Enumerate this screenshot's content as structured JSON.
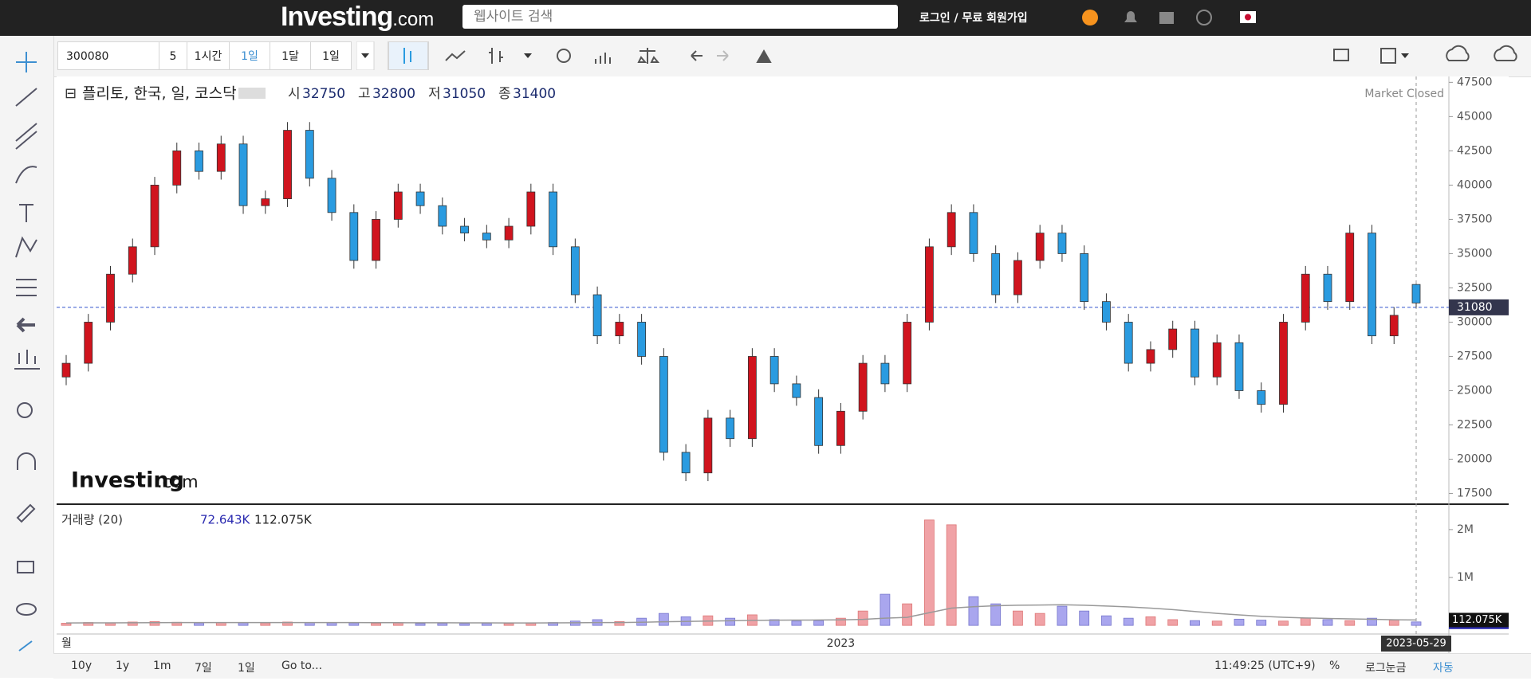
{
  "header": {
    "logo": "Investing",
    "logo_suffix": ".com",
    "search_placeholder": "웹사이트 검색",
    "login": "로그인 / 무료 회원가입"
  },
  "toolbar": {
    "symbol": "300080",
    "intervals": [
      "5",
      "1시간",
      "1일",
      "1달",
      "1일"
    ]
  },
  "chart_data": {
    "type": "candlestick",
    "title": "플리토, 한국, 일, 코스닥",
    "ohlc_labels": [
      "시",
      "고",
      "저",
      "종"
    ],
    "market_status": "Market Closed",
    "watermark": "Investing",
    "watermark_suffix": ".com",
    "up_color": "#d0141e",
    "down_color": "#2a9be0",
    "vol_up_color": "#f0a2a6",
    "vol_down_color": "#a9a6ee",
    "ma_color": "#999999",
    "categories": [
      "월",
      null,
      null,
      null,
      null,
      null,
      null,
      null,
      null,
      null,
      null,
      null,
      null,
      null,
      null,
      null,
      null,
      null,
      null,
      null,
      null,
      null,
      null,
      null,
      null,
      null,
      null,
      null,
      null,
      null,
      null,
      null,
      null,
      null,
      null,
      "2023",
      null,
      null,
      null,
      null,
      null,
      null,
      null,
      null,
      null,
      null,
      null,
      null,
      null,
      null,
      null,
      null,
      null,
      null,
      null,
      null,
      null,
      null,
      null,
      null,
      null,
      "2023-05-29"
    ],
    "open": [
      26000,
      27000,
      30000,
      33500,
      35500,
      40000,
      42500,
      41000,
      43000,
      38500,
      39000,
      44000,
      40500,
      38000,
      34500,
      37500,
      39500,
      38500,
      37000,
      36500,
      36000,
      37000,
      39500,
      35500,
      32000,
      29000,
      30000,
      27500,
      20500,
      19000,
      23000,
      21500,
      27500,
      25500,
      24500,
      21000,
      23500,
      27000,
      25500,
      30000,
      35500,
      38000,
      35000,
      32000,
      34500,
      36500,
      35000,
      31500,
      30000,
      27000,
      28000,
      29500,
      26000,
      28500,
      25000,
      24000,
      30000,
      33500,
      31500,
      36500,
      29000,
      32750
    ],
    "high": [
      27600,
      30600,
      34100,
      36100,
      40600,
      43100,
      43100,
      43600,
      43600,
      39600,
      44600,
      44600,
      41100,
      38600,
      38100,
      40100,
      40100,
      39100,
      37600,
      37100,
      37600,
      40100,
      40100,
      36100,
      32600,
      30600,
      30600,
      28100,
      21100,
      23600,
      23600,
      28100,
      28100,
      26100,
      25100,
      24100,
      27600,
      27600,
      30600,
      36100,
      38600,
      38600,
      35600,
      35100,
      37100,
      37100,
      35600,
      32100,
      30600,
      28600,
      30100,
      30100,
      29100,
      29100,
      25600,
      30600,
      34100,
      34100,
      37100,
      37100,
      31100,
      32800
    ],
    "low": [
      25400,
      26400,
      29400,
      32900,
      34900,
      39400,
      40400,
      40400,
      37900,
      37900,
      38400,
      39900,
      37400,
      33900,
      33900,
      36900,
      37900,
      36400,
      35900,
      35400,
      35400,
      36400,
      34900,
      31400,
      28400,
      28400,
      26900,
      19900,
      18400,
      18400,
      20900,
      20900,
      24900,
      23900,
      20400,
      20400,
      22900,
      24900,
      24900,
      29400,
      34900,
      34400,
      31400,
      31400,
      33900,
      34400,
      30900,
      29400,
      26400,
      26400,
      27400,
      25400,
      25400,
      24400,
      23400,
      23400,
      29400,
      30900,
      30900,
      28400,
      28400,
      31050
    ],
    "close": [
      27000,
      30000,
      33500,
      35500,
      40000,
      42500,
      41000,
      43000,
      38500,
      39000,
      44000,
      40500,
      38000,
      34500,
      37500,
      39500,
      38500,
      37000,
      36500,
      36000,
      37000,
      39500,
      35500,
      32000,
      29000,
      30000,
      27500,
      20500,
      19000,
      23000,
      21500,
      27500,
      25500,
      24500,
      21000,
      23500,
      27000,
      25500,
      30000,
      35500,
      38000,
      35000,
      32000,
      34500,
      36500,
      35000,
      31500,
      30000,
      27000,
      28000,
      29500,
      26000,
      28500,
      25000,
      24000,
      30000,
      33500,
      31500,
      36500,
      29000,
      30500,
      31400
    ],
    "ylim": [
      16718,
      47927
    ],
    "yticks": [
      17500,
      20000,
      22500,
      25000,
      27500,
      30000,
      32500,
      35000,
      37500,
      40000,
      42500,
      45000,
      47500
    ],
    "last_price": 31080,
    "volume_title": "거래량 (20)",
    "volume": [
      45000,
      60000,
      55000,
      70000,
      80000,
      65000,
      50000,
      60000,
      55000,
      50000,
      70000,
      60000,
      55000,
      50000,
      45000,
      50000,
      40000,
      45000,
      40000,
      45000,
      40000,
      50000,
      60000,
      90000,
      120000,
      80000,
      150000,
      250000,
      180000,
      200000,
      150000,
      220000,
      120000,
      90000,
      100000,
      150000,
      300000,
      650000,
      450000,
      2200000,
      2100000,
      600000,
      450000,
      300000,
      250000,
      400000,
      300000,
      200000,
      150000,
      180000,
      120000,
      100000,
      90000,
      130000,
      110000,
      90000,
      150000,
      120000,
      100000,
      150000,
      110000,
      72643
    ],
    "volume_ma": [
      50000,
      52000,
      53000,
      55000,
      57000,
      58000,
      58000,
      59000,
      59000,
      58000,
      59000,
      59000,
      59000,
      58000,
      57000,
      56000,
      55000,
      54000,
      53000,
      52000,
      51000,
      51000,
      52000,
      54000,
      58000,
      60000,
      65000,
      75000,
      82000,
      90000,
      96000,
      104000,
      108000,
      110000,
      112000,
      116000,
      126000,
      150000,
      168000,
      265000,
      360000,
      390000,
      410000,
      420000,
      425000,
      430000,
      420000,
      405000,
      385000,
      360000,
      330000,
      290000,
      250000,
      220000,
      190000,
      170000,
      155000,
      145000,
      135000,
      128000,
      118000,
      112075
    ],
    "vol_ylim": [
      -180000,
      2530000
    ],
    "vol_yticks": [
      {
        "value": 1000000,
        "label": "1M"
      },
      {
        "value": 2000000,
        "label": "2M"
      }
    ],
    "volume_markers": [
      {
        "value": 72643,
        "label": "72.643K"
      },
      {
        "value": 112075,
        "label": "112.075K"
      }
    ]
  },
  "bottom_bar": {
    "ranges": [
      "10y",
      "1y",
      "1m",
      "7일",
      "1일"
    ],
    "goto": "Go to...",
    "time": "11:49:25 (UTC+9)",
    "percent": "%",
    "log": "로그눈금",
    "auto": "자동"
  }
}
